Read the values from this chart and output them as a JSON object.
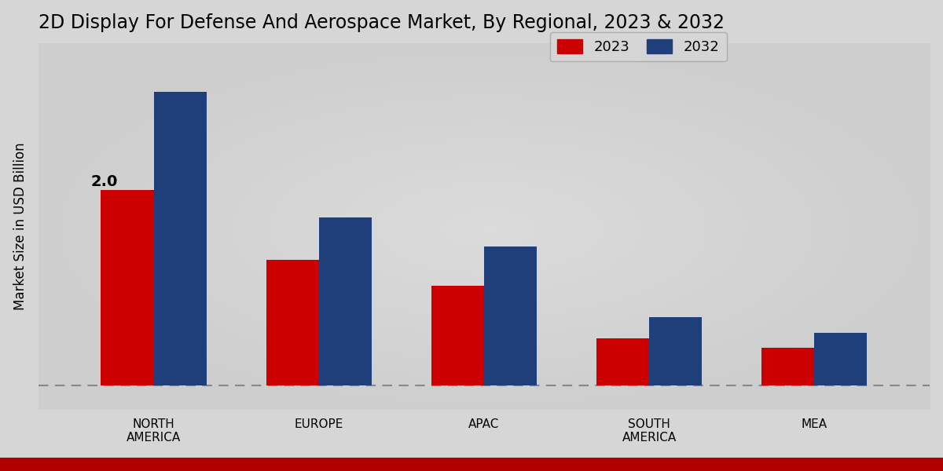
{
  "title": "2D Display For Defense And Aerospace Market, By Regional, 2023 & 2032",
  "ylabel": "Market Size in USD Billion",
  "categories": [
    "NORTH\nAMERICA",
    "EUROPE",
    "APAC",
    "SOUTH\nAMERICA",
    "MEA"
  ],
  "values_2023": [
    2.0,
    1.28,
    1.02,
    0.48,
    0.38
  ],
  "values_2032": [
    3.0,
    1.72,
    1.42,
    0.7,
    0.54
  ],
  "color_2023": "#cc0000",
  "color_2032": "#1f3f7a",
  "annotation_label": "2.0",
  "background_color_center": "#d8d8d8",
  "background_color_edge": "#b0b0b0",
  "bar_width": 0.32,
  "legend_labels": [
    "2023",
    "2032"
  ],
  "title_fontsize": 17,
  "label_fontsize": 12,
  "tick_fontsize": 11,
  "bottom_bar_color": "#b00000",
  "ylim_max": 3.5
}
